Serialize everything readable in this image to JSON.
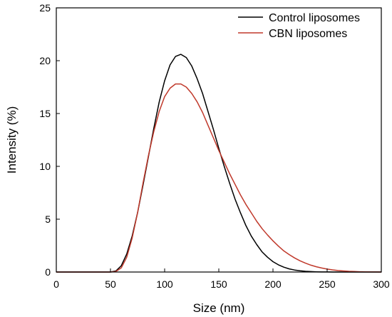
{
  "chart_data": {
    "type": "line",
    "xlabel": "Size (nm)",
    "ylabel": "Intensity (%)",
    "xlim": [
      0,
      300
    ],
    "ylim": [
      0,
      25
    ],
    "xticks": [
      0,
      50,
      100,
      150,
      200,
      250,
      300
    ],
    "yticks": [
      0,
      5,
      10,
      15,
      20,
      25
    ],
    "grid": false,
    "legend_position": "top-right",
    "x": [
      0,
      50,
      55,
      60,
      65,
      70,
      75,
      80,
      85,
      90,
      95,
      100,
      105,
      110,
      115,
      120,
      125,
      130,
      135,
      140,
      145,
      150,
      155,
      160,
      165,
      170,
      175,
      180,
      185,
      190,
      195,
      200,
      205,
      210,
      215,
      220,
      225,
      230,
      235,
      240,
      245,
      250,
      255,
      260,
      265,
      270,
      275,
      280,
      285,
      290,
      295,
      300
    ],
    "series": [
      {
        "name": "Control liposomes",
        "color": "#000000",
        "values": [
          0,
          0,
          0.1,
          0.6,
          1.7,
          3.4,
          5.6,
          8.2,
          10.9,
          13.6,
          16.1,
          18.1,
          19.6,
          20.4,
          20.6,
          20.3,
          19.5,
          18.3,
          16.9,
          15.2,
          13.5,
          11.7,
          10.0,
          8.4,
          6.9,
          5.6,
          4.4,
          3.4,
          2.6,
          1.9,
          1.4,
          0.98,
          0.68,
          0.46,
          0.3,
          0.19,
          0.12,
          0.07,
          0.04,
          0.02,
          0.01,
          0.01,
          0,
          0,
          0,
          0,
          0,
          0,
          0,
          0,
          0,
          0
        ]
      },
      {
        "name": "CBN liposomes",
        "color": "#c0392b",
        "values": [
          0,
          0,
          0.05,
          0.4,
          1.4,
          3.2,
          5.6,
          8.4,
          11.0,
          13.3,
          15.2,
          16.6,
          17.4,
          17.8,
          17.8,
          17.5,
          16.9,
          16.1,
          15.1,
          13.9,
          12.7,
          11.5,
          10.4,
          9.3,
          8.3,
          7.3,
          6.4,
          5.6,
          4.8,
          4.1,
          3.5,
          2.95,
          2.45,
          2.0,
          1.65,
          1.33,
          1.06,
          0.84,
          0.65,
          0.5,
          0.38,
          0.28,
          0.2,
          0.14,
          0.1,
          0.07,
          0.05,
          0.03,
          0.02,
          0.01,
          0.01,
          0
        ]
      }
    ]
  }
}
